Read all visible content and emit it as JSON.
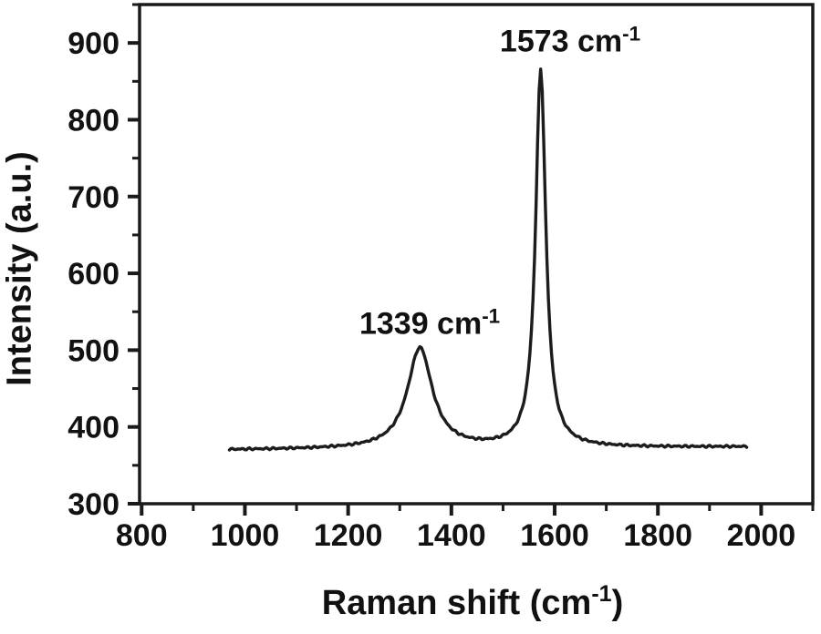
{
  "figure": {
    "background": "#ffffff",
    "axis_color": "#1a1a1a",
    "text_color": "#111111"
  },
  "chart_data": {
    "type": "line",
    "title": "",
    "xlabel": {
      "pre": "Raman shift (cm",
      "sup": "-1",
      "post": ")"
    },
    "ylabel": "Intensity (a.u.)",
    "xlim": [
      796,
      2100
    ],
    "ylim": [
      300,
      950
    ],
    "x_ticks": [
      800,
      1000,
      1200,
      1400,
      1600,
      1800,
      2000
    ],
    "x_minor_ticks": [
      900,
      1100,
      1300,
      1500,
      1700,
      1900,
      2100
    ],
    "y_ticks": [
      300,
      400,
      500,
      600,
      700,
      800,
      900
    ],
    "y_minor_ticks": [
      350,
      450,
      550,
      650,
      750,
      850,
      950
    ],
    "grid": false,
    "legend": null,
    "series": [
      {
        "name": "raman-spectrum",
        "color": "#1c1c1c",
        "model": "baseline_plus_lorentzian_peaks",
        "x_start": 970,
        "x_end": 1972,
        "x_step": 3,
        "baseline": {
          "value_at_start": 370,
          "slope_per_cm": 0.004
        },
        "peaks": [
          {
            "center": 1339,
            "peak_intensity": 503,
            "height_above_baseline": 131,
            "hwhm": 29
          },
          {
            "center": 1573,
            "peak_intensity": 865,
            "height_above_baseline": 493,
            "hwhm": 12
          }
        ],
        "noise_amplitude": 1.5
      }
    ],
    "annotations": [
      {
        "pre": "1339 cm",
        "sup": "-1",
        "anchor_x": 1358,
        "anchor_y": 535
      },
      {
        "pre": "1573 cm",
        "sup": "-1",
        "anchor_x": 1630,
        "anchor_y": 902
      }
    ]
  }
}
